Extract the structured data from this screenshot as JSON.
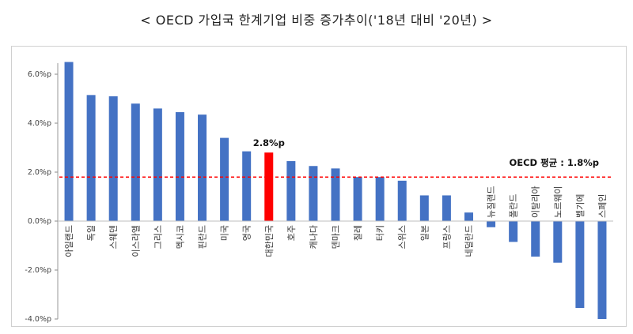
{
  "title": "< OECD 가입국 한계기업 비중 증가추이('18년 대비 '20년) >",
  "chart_data": {
    "type": "bar",
    "title": "< OECD 가입국 한계기업 비중 증가추이('18년 대비 '20년) >",
    "xlabel": "",
    "ylabel": "",
    "ylim": [
      -4.0,
      6.0
    ],
    "yticks": [
      6.0,
      4.0,
      2.0,
      0.0,
      -2.0,
      -4.0
    ],
    "ytick_labels": [
      "6.0%p",
      "4.0%p",
      "2.0%p",
      "0.0%p",
      "-2.0%p",
      "-4.0%p"
    ],
    "grid": false,
    "categories": [
      "아일랜드",
      "독일",
      "스웨덴",
      "이스라엘",
      "그리스",
      "멕시코",
      "핀란드",
      "미국",
      "영국",
      "대한민국",
      "호주",
      "캐나다",
      "덴마크",
      "칠레",
      "터키",
      "스위스",
      "일본",
      "프랑스",
      "네덜란드",
      "뉴질랜드",
      "폴란드",
      "이탈리아",
      "노르웨이",
      "벨기에",
      "스페인"
    ],
    "values": [
      6.5,
      5.15,
      5.1,
      4.8,
      4.6,
      4.45,
      4.35,
      3.4,
      2.85,
      2.8,
      2.45,
      2.25,
      2.15,
      1.8,
      1.8,
      1.65,
      1.05,
      1.05,
      0.35,
      -0.25,
      -0.85,
      -1.45,
      -1.7,
      -3.55,
      -4.0
    ],
    "highlight_index": 9,
    "colors": {
      "bar": "#4472c4",
      "highlight": "#ff0000",
      "average_line": "#ff0000"
    },
    "annotations": {
      "highlight_label": "2.8%p",
      "average_label": "OECD 평균 : 1.8%p",
      "average_value": 1.8
    }
  }
}
